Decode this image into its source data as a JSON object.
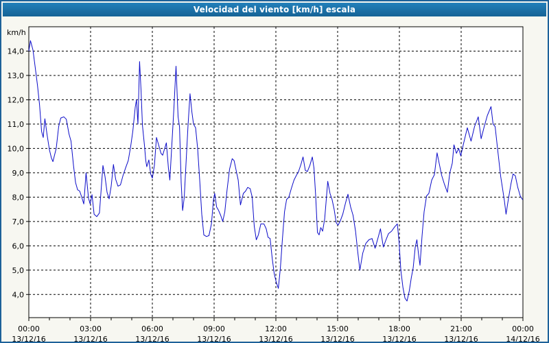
{
  "window": {
    "title": "Velocidad del viento [km/h] escala"
  },
  "colors": {
    "titlebar_top": "#2380bb",
    "titlebar_bottom": "#156395",
    "frame_border": "#1d6299",
    "page_bg": "#f7f7f1",
    "plot_bg": "#ffffff",
    "line": "#0a0ac8",
    "grid": "#000000",
    "title_text": "#ffffff"
  },
  "chart_data": {
    "type": "line",
    "title": "Velocidad del viento [km/h] escala",
    "ylabel": "km/h",
    "xlabel": "",
    "grid": true,
    "legend": "none",
    "ylim": [
      3.05,
      15.0
    ],
    "xlim_hours": [
      0,
      24
    ],
    "minor_x_tick_every_hours": 1,
    "y_ticks": [
      {
        "value": 4,
        "label": "4,0"
      },
      {
        "value": 5,
        "label": "5,0"
      },
      {
        "value": 6,
        "label": "6,0"
      },
      {
        "value": 7,
        "label": "7,0"
      },
      {
        "value": 8,
        "label": "8,0"
      },
      {
        "value": 9,
        "label": "9,0"
      },
      {
        "value": 10,
        "label": "10,0"
      },
      {
        "value": 11,
        "label": "11,0"
      },
      {
        "value": 12,
        "label": "12,0"
      },
      {
        "value": 13,
        "label": "13,0"
      },
      {
        "value": 14,
        "label": "14,0"
      }
    ],
    "x_ticks": [
      {
        "hour": 0,
        "time": "00:00",
        "date": "13/12/16"
      },
      {
        "hour": 3,
        "time": "03:00",
        "date": "13/12/16"
      },
      {
        "hour": 6,
        "time": "06:00",
        "date": "13/12/16"
      },
      {
        "hour": 9,
        "time": "09:00",
        "date": "13/12/16"
      },
      {
        "hour": 12,
        "time": "12:00",
        "date": "13/12/16"
      },
      {
        "hour": 15,
        "time": "15:00",
        "date": "13/12/16"
      },
      {
        "hour": 18,
        "time": "18:00",
        "date": "13/12/16"
      },
      {
        "hour": 21,
        "time": "21:00",
        "date": "13/12/16"
      },
      {
        "hour": 24,
        "time": "00:00",
        "date": "14/12/16"
      }
    ],
    "series": [
      {
        "name": "Velocidad del viento",
        "unit": "km/h",
        "color": "#0a0ac8",
        "points": [
          [
            0.0,
            14.0
          ],
          [
            0.08,
            14.43
          ],
          [
            0.2,
            14.05
          ],
          [
            0.3,
            13.4
          ],
          [
            0.42,
            12.6
          ],
          [
            0.52,
            11.8
          ],
          [
            0.62,
            10.7
          ],
          [
            0.7,
            10.45
          ],
          [
            0.78,
            11.22
          ],
          [
            0.88,
            10.6
          ],
          [
            1.0,
            9.95
          ],
          [
            1.1,
            9.6
          ],
          [
            1.17,
            9.46
          ],
          [
            1.33,
            10.0
          ],
          [
            1.45,
            10.9
          ],
          [
            1.55,
            11.25
          ],
          [
            1.7,
            11.3
          ],
          [
            1.82,
            11.2
          ],
          [
            1.95,
            10.6
          ],
          [
            2.05,
            10.3
          ],
          [
            2.17,
            9.3
          ],
          [
            2.27,
            8.6
          ],
          [
            2.37,
            8.3
          ],
          [
            2.47,
            8.25
          ],
          [
            2.57,
            8.0
          ],
          [
            2.67,
            7.72
          ],
          [
            2.78,
            9.0
          ],
          [
            2.9,
            7.95
          ],
          [
            2.98,
            7.72
          ],
          [
            3.07,
            8.1
          ],
          [
            3.17,
            7.3
          ],
          [
            3.3,
            7.2
          ],
          [
            3.43,
            7.35
          ],
          [
            3.53,
            8.5
          ],
          [
            3.6,
            9.3
          ],
          [
            3.7,
            8.85
          ],
          [
            3.8,
            8.2
          ],
          [
            3.9,
            7.93
          ],
          [
            4.0,
            8.45
          ],
          [
            4.11,
            9.34
          ],
          [
            4.22,
            8.73
          ],
          [
            4.33,
            8.45
          ],
          [
            4.45,
            8.5
          ],
          [
            4.58,
            8.9
          ],
          [
            4.7,
            9.2
          ],
          [
            4.83,
            9.5
          ],
          [
            4.95,
            10.1
          ],
          [
            5.05,
            10.7
          ],
          [
            5.17,
            11.7
          ],
          [
            5.23,
            12.0
          ],
          [
            5.3,
            11.0
          ],
          [
            5.38,
            13.57
          ],
          [
            5.45,
            12.4
          ],
          [
            5.52,
            10.94
          ],
          [
            5.62,
            10.1
          ],
          [
            5.68,
            9.5
          ],
          [
            5.73,
            9.25
          ],
          [
            5.83,
            9.53
          ],
          [
            5.92,
            8.95
          ],
          [
            6.0,
            8.78
          ],
          [
            6.1,
            9.3
          ],
          [
            6.2,
            10.45
          ],
          [
            6.32,
            10.1
          ],
          [
            6.42,
            9.8
          ],
          [
            6.5,
            9.72
          ],
          [
            6.6,
            10.0
          ],
          [
            6.68,
            10.23
          ],
          [
            6.78,
            9.2
          ],
          [
            6.85,
            8.7
          ],
          [
            6.95,
            10.2
          ],
          [
            7.05,
            11.7
          ],
          [
            7.15,
            13.38
          ],
          [
            7.25,
            11.3
          ],
          [
            7.32,
            10.89
          ],
          [
            7.4,
            8.6
          ],
          [
            7.47,
            7.45
          ],
          [
            7.55,
            8.0
          ],
          [
            7.63,
            9.3
          ],
          [
            7.73,
            10.9
          ],
          [
            7.83,
            12.25
          ],
          [
            7.92,
            11.5
          ],
          [
            8.0,
            11.0
          ],
          [
            8.1,
            10.85
          ],
          [
            8.2,
            10.0
          ],
          [
            8.3,
            8.7
          ],
          [
            8.4,
            7.3
          ],
          [
            8.5,
            6.45
          ],
          [
            8.63,
            6.38
          ],
          [
            8.75,
            6.42
          ],
          [
            8.87,
            6.9
          ],
          [
            8.97,
            7.9
          ],
          [
            9.03,
            8.15
          ],
          [
            9.12,
            7.6
          ],
          [
            9.22,
            7.45
          ],
          [
            9.32,
            7.25
          ],
          [
            9.42,
            7.0
          ],
          [
            9.52,
            7.4
          ],
          [
            9.63,
            8.3
          ],
          [
            9.75,
            9.15
          ],
          [
            9.88,
            9.58
          ],
          [
            9.97,
            9.5
          ],
          [
            10.07,
            9.1
          ],
          [
            10.17,
            8.7
          ],
          [
            10.28,
            7.68
          ],
          [
            10.42,
            8.15
          ],
          [
            10.53,
            8.25
          ],
          [
            10.63,
            8.4
          ],
          [
            10.75,
            8.35
          ],
          [
            10.85,
            8.0
          ],
          [
            10.95,
            6.8
          ],
          [
            11.05,
            6.25
          ],
          [
            11.15,
            6.45
          ],
          [
            11.27,
            6.9
          ],
          [
            11.42,
            6.9
          ],
          [
            11.53,
            6.7
          ],
          [
            11.62,
            6.35
          ],
          [
            11.72,
            6.3
          ],
          [
            11.82,
            5.5
          ],
          [
            11.92,
            4.85
          ],
          [
            12.02,
            4.5
          ],
          [
            12.12,
            4.25
          ],
          [
            12.22,
            5.1
          ],
          [
            12.32,
            6.3
          ],
          [
            12.42,
            7.4
          ],
          [
            12.52,
            7.9
          ],
          [
            12.63,
            8.0
          ],
          [
            12.75,
            8.35
          ],
          [
            12.88,
            8.7
          ],
          [
            13.0,
            8.9
          ],
          [
            13.1,
            9.05
          ],
          [
            13.22,
            9.35
          ],
          [
            13.32,
            9.65
          ],
          [
            13.43,
            9.1
          ],
          [
            13.53,
            9.05
          ],
          [
            13.65,
            9.3
          ],
          [
            13.77,
            9.65
          ],
          [
            13.85,
            9.2
          ],
          [
            13.93,
            8.1
          ],
          [
            14.02,
            6.55
          ],
          [
            14.1,
            6.45
          ],
          [
            14.18,
            6.75
          ],
          [
            14.27,
            6.6
          ],
          [
            14.37,
            7.1
          ],
          [
            14.52,
            8.65
          ],
          [
            14.63,
            8.15
          ],
          [
            14.73,
            7.9
          ],
          [
            14.83,
            7.5
          ],
          [
            14.93,
            6.95
          ],
          [
            15.02,
            6.85
          ],
          [
            15.12,
            7.0
          ],
          [
            15.25,
            7.3
          ],
          [
            15.38,
            7.75
          ],
          [
            15.5,
            8.12
          ],
          [
            15.63,
            7.6
          ],
          [
            15.75,
            7.25
          ],
          [
            15.87,
            6.6
          ],
          [
            15.97,
            5.8
          ],
          [
            16.08,
            5.0
          ],
          [
            16.22,
            5.7
          ],
          [
            16.37,
            6.1
          ],
          [
            16.52,
            6.25
          ],
          [
            16.67,
            6.3
          ],
          [
            16.82,
            5.9
          ],
          [
            16.97,
            6.35
          ],
          [
            17.08,
            6.7
          ],
          [
            17.22,
            5.95
          ],
          [
            17.35,
            6.25
          ],
          [
            17.47,
            6.5
          ],
          [
            17.62,
            6.6
          ],
          [
            17.77,
            6.78
          ],
          [
            17.9,
            6.9
          ],
          [
            17.98,
            6.2
          ],
          [
            18.07,
            5.0
          ],
          [
            18.17,
            4.3
          ],
          [
            18.27,
            3.85
          ],
          [
            18.37,
            3.73
          ],
          [
            18.48,
            4.15
          ],
          [
            18.58,
            4.7
          ],
          [
            18.67,
            5.1
          ],
          [
            18.77,
            5.95
          ],
          [
            18.85,
            6.25
          ],
          [
            18.93,
            5.65
          ],
          [
            19.0,
            5.2
          ],
          [
            19.1,
            6.4
          ],
          [
            19.2,
            7.4
          ],
          [
            19.32,
            8.05
          ],
          [
            19.43,
            8.15
          ],
          [
            19.57,
            8.7
          ],
          [
            19.7,
            8.92
          ],
          [
            19.83,
            9.82
          ],
          [
            19.93,
            9.4
          ],
          [
            20.05,
            8.9
          ],
          [
            20.18,
            8.55
          ],
          [
            20.33,
            8.2
          ],
          [
            20.45,
            9.0
          ],
          [
            20.57,
            9.4
          ],
          [
            20.65,
            10.15
          ],
          [
            20.77,
            9.8
          ],
          [
            20.88,
            10.0
          ],
          [
            20.98,
            9.7
          ],
          [
            21.13,
            10.25
          ],
          [
            21.3,
            10.85
          ],
          [
            21.48,
            10.3
          ],
          [
            21.65,
            10.9
          ],
          [
            21.83,
            11.3
          ],
          [
            21.97,
            10.4
          ],
          [
            22.12,
            10.9
          ],
          [
            22.27,
            11.35
          ],
          [
            22.45,
            11.72
          ],
          [
            22.55,
            11.0
          ],
          [
            22.65,
            10.9
          ],
          [
            22.78,
            9.9
          ],
          [
            22.92,
            8.85
          ],
          [
            23.02,
            8.3
          ],
          [
            23.1,
            7.85
          ],
          [
            23.18,
            7.3
          ],
          [
            23.3,
            7.95
          ],
          [
            23.42,
            8.55
          ],
          [
            23.52,
            8.95
          ],
          [
            23.63,
            8.88
          ],
          [
            23.75,
            8.4
          ],
          [
            23.87,
            8.05
          ],
          [
            23.98,
            7.9
          ],
          [
            24.0,
            7.9
          ]
        ]
      }
    ]
  }
}
